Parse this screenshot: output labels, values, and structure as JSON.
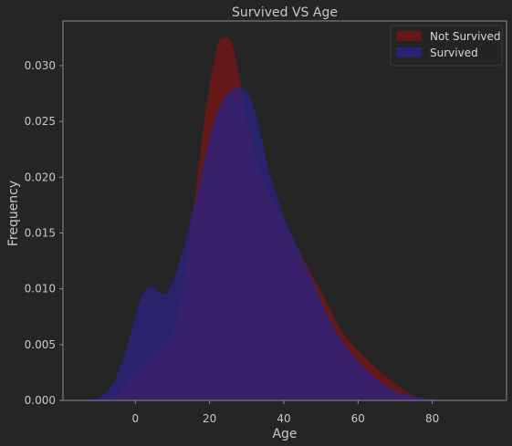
{
  "colors": {
    "background": "#252525",
    "axes_frame": "#8a8a8a",
    "text": "#c8c8c8",
    "not_survived": "#7a1616",
    "survived": "#2b2387"
  },
  "chart_data": {
    "type": "area",
    "title": "Survived VS Age",
    "xlabel": "Age",
    "ylabel": "Frequency",
    "xlim": [
      -19.5,
      100
    ],
    "ylim": [
      0,
      0.034
    ],
    "grid": false,
    "legend_position": "top-right",
    "x_ticks": [
      0,
      20,
      40,
      60,
      80
    ],
    "x_tick_labels": [
      "0",
      "20",
      "40",
      "60",
      "80"
    ],
    "y_ticks": [
      0,
      0.005,
      0.01,
      0.015,
      0.02,
      0.025,
      0.03
    ],
    "y_tick_labels": [
      "0.000",
      "0.005",
      "0.010",
      "0.015",
      "0.020",
      "0.025",
      "0.030"
    ],
    "legend_entries": [
      "Not Survived",
      "Survived"
    ],
    "series": [
      {
        "name": "Not Survived",
        "color": "#7a1616",
        "opacity": 0.75,
        "x": [
          -10,
          -6,
          -3,
          0,
          3,
          6,
          10,
          13,
          16,
          19,
          22,
          24,
          26,
          28,
          30,
          33,
          36,
          40,
          44,
          48,
          52,
          56,
          60,
          64,
          68,
          72,
          76,
          80,
          84
        ],
        "y": [
          0,
          0.0003,
          0.0012,
          0.0025,
          0.0035,
          0.0045,
          0.006,
          0.0105,
          0.018,
          0.026,
          0.0315,
          0.0325,
          0.032,
          0.029,
          0.025,
          0.021,
          0.0185,
          0.016,
          0.0135,
          0.011,
          0.0085,
          0.006,
          0.0045,
          0.0032,
          0.002,
          0.001,
          0.0003,
          0.0001,
          0
        ]
      },
      {
        "name": "Survived",
        "color": "#2b2387",
        "opacity": 0.75,
        "x": [
          -13,
          -9,
          -6,
          -3,
          0,
          2,
          4,
          6,
          8,
          10,
          12,
          14,
          17,
          20,
          23,
          26,
          28,
          30,
          32,
          34,
          36,
          38,
          40,
          44,
          48,
          52,
          56,
          60,
          64,
          68,
          72,
          76,
          80,
          84,
          88
        ],
        "y": [
          0,
          0.0004,
          0.0015,
          0.004,
          0.0075,
          0.0095,
          0.0102,
          0.0098,
          0.0095,
          0.0105,
          0.0125,
          0.015,
          0.019,
          0.0235,
          0.0265,
          0.0278,
          0.028,
          0.0277,
          0.0262,
          0.0235,
          0.0205,
          0.0185,
          0.0165,
          0.0135,
          0.0105,
          0.0075,
          0.0052,
          0.0035,
          0.0022,
          0.0012,
          0.0006,
          0.0003,
          0.0001,
          5e-05,
          0
        ]
      }
    ]
  }
}
